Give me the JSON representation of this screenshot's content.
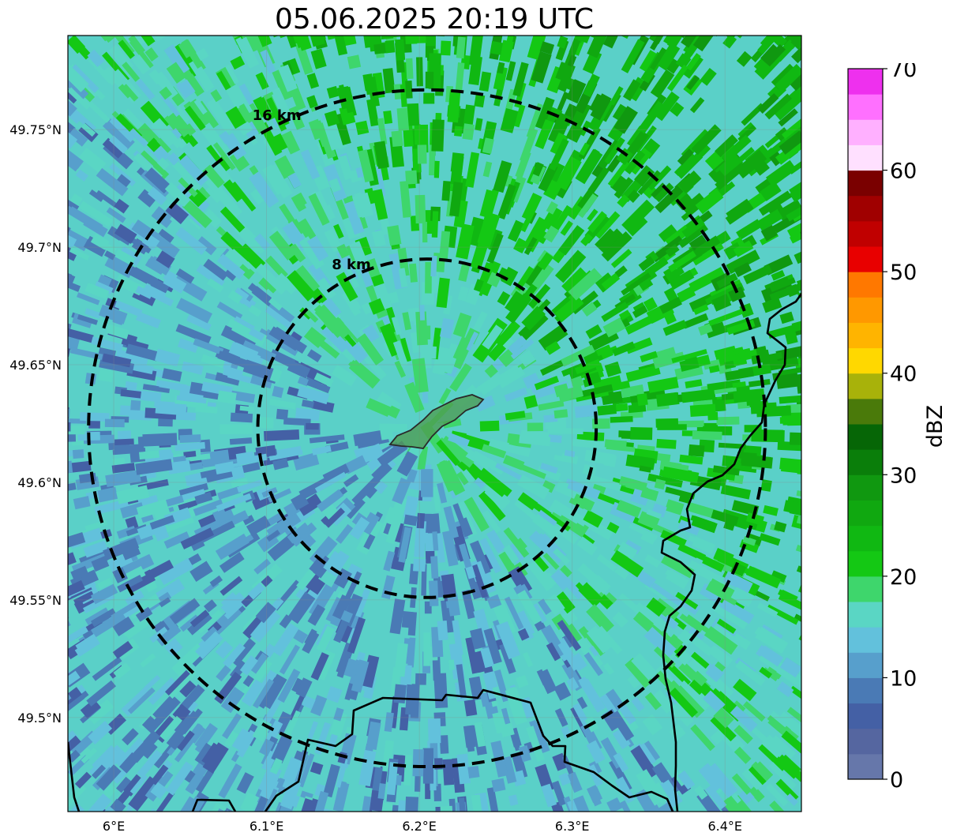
{
  "title": "05.06.2025 20:19 UTC",
  "map": {
    "x_ticks": [
      "6°E",
      "6.1°E",
      "6.2°E",
      "6.3°E",
      "6.4°E"
    ],
    "y_ticks": [
      "49.75°N",
      "49.7°N",
      "49.65°N",
      "49.6°N",
      "49.55°N",
      "49.5°N"
    ],
    "lon_range": [
      5.97,
      6.45
    ],
    "lat_range": [
      49.46,
      49.79
    ],
    "center": {
      "lon": 6.205,
      "lat": 49.623
    },
    "rings": [
      {
        "label": "8 km",
        "radius_km": 8
      },
      {
        "label": "16 km",
        "radius_km": 16
      }
    ],
    "border_color": "#000000",
    "highlight_area_color": "#4f9a4f"
  },
  "colorbar": {
    "label": "dBZ",
    "min": 0,
    "max": 70,
    "ticks": [
      "0",
      "10",
      "20",
      "30",
      "40",
      "50",
      "60",
      "70"
    ],
    "colors": [
      "#6677aa",
      "#5566a0",
      "#4460a5",
      "#4a7ab5",
      "#579fcc",
      "#62c1dc",
      "#5ad6c4",
      "#3ed66c",
      "#14c814",
      "#10b812",
      "#10a810",
      "#109810",
      "#0a7e0a",
      "#066606",
      "#4a7a0a",
      "#a8b20a",
      "#ffd800",
      "#ffb400",
      "#ff9800",
      "#ff7800",
      "#e80000",
      "#c00000",
      "#a00000",
      "#7a0000",
      "#ffe0ff",
      "#ffb0ff",
      "#ff70ff",
      "#ee30ee"
    ]
  }
}
